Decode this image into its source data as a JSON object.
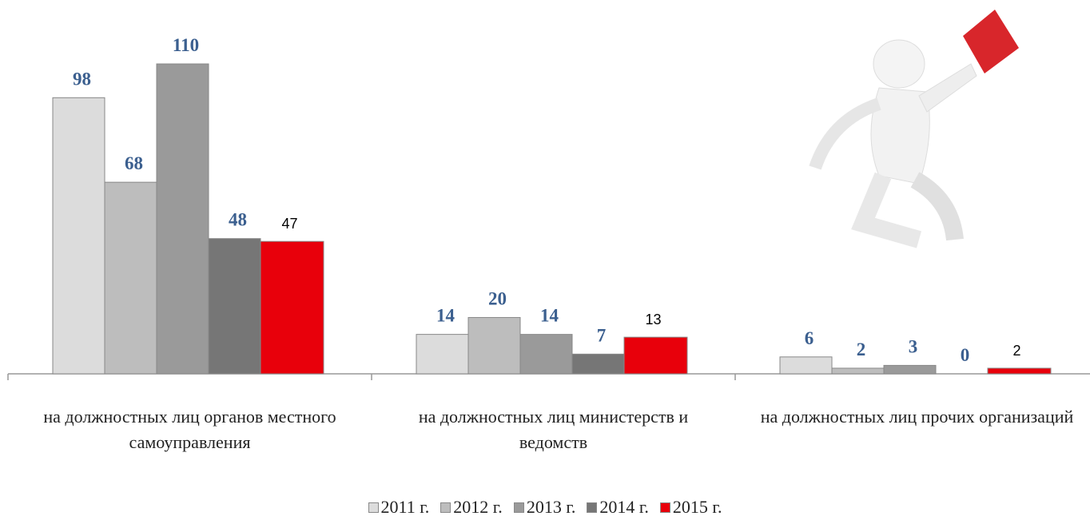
{
  "chart_data": {
    "type": "bar",
    "categories": [
      "на должностных лиц органов местного самоуправления",
      "на должностных лиц министерств и ведомств",
      "на должностных лиц прочих организаций"
    ],
    "series": [
      {
        "name": "2011 г.",
        "color": "#dcdcdc",
        "values": [
          98,
          14,
          6
        ]
      },
      {
        "name": "2012 г.",
        "color": "#bdbdbd",
        "values": [
          68,
          20,
          2
        ]
      },
      {
        "name": "2013 г.",
        "color": "#9a9a9a",
        "values": [
          110,
          14,
          3
        ]
      },
      {
        "name": "2014 г.",
        "color": "#767676",
        "values": [
          48,
          7,
          0
        ]
      },
      {
        "name": "2015 г.",
        "color": "#e8000b",
        "values": [
          47,
          13,
          2
        ]
      }
    ],
    "legend": "bottom"
  }
}
